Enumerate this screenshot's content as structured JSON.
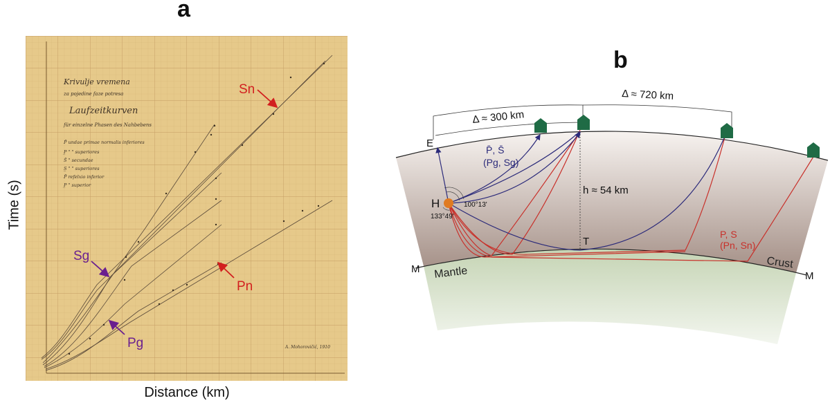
{
  "panel_a": {
    "letter": "a",
    "y_axis_title": "Time (s)",
    "x_axis_title": "Distance (km)",
    "handwritten_heading": [
      "Krivulje vremena",
      "za pojedine faze potresa",
      "Laufzeitkurven",
      "für einzelne Phasen des Nahbebens"
    ],
    "handwritten_legend": [
      "P̄  undae primae normalis inferiores",
      "P̲  \" \"  superiores",
      "S̄  \" secundae",
      "S̲  \" \"  superiores",
      "P̄  refelxio inferior",
      "P̲  \" superior"
    ],
    "signature": "A. Mohorovičić, 1910",
    "labels": {
      "sn": "Sn",
      "sg": "Sg",
      "pn": "Pn",
      "pg": "Pg"
    },
    "colors": {
      "paper": "#e6c98a",
      "grid": "#c9a66a",
      "red_label": "#d21f1f",
      "purple_label": "#6a1f8f"
    }
  },
  "panel_b": {
    "letter": "b",
    "distance_300": "Δ ≈ 300 km",
    "distance_720": "Δ ≈ 720 km",
    "label_E": "E",
    "label_H": "H",
    "label_T": "T",
    "label_M_left": "M",
    "label_M_right": "M",
    "angle_100": "100°13'",
    "angle_133": "133°49'",
    "depth": "h ≈ 54 km",
    "direct_waves_1": "P̄, S̄",
    "direct_waves_2": "(Pg, Sg)",
    "head_waves_1": "P, S",
    "head_waves_2": "(Pn, Sn)",
    "crust_label": "Crust",
    "mantle_label": "Mantle",
    "colors": {
      "blue_ray": "#2b2a7a",
      "red_ray": "#c8302a",
      "crust_top": "#f5f1ee",
      "crust_bottom": "#a48f86",
      "mantle_top": "#cfdcc0",
      "mantle_bottom": "#f2f6ee",
      "station": "#1f6b45",
      "hypocenter": "#e07b22"
    }
  }
}
